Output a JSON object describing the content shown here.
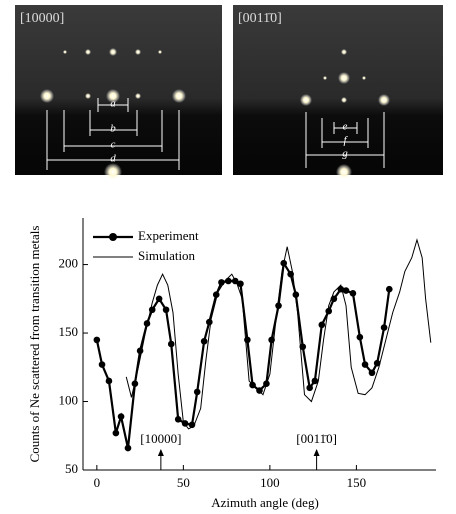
{
  "images": [
    {
      "label": "[10000]",
      "markers": [
        "a",
        "b",
        "c",
        "d"
      ]
    },
    {
      "label": "[0011̄0]",
      "markers": [
        "e",
        "f",
        "g"
      ]
    }
  ],
  "chart_data": {
    "type": "line",
    "xlabel": "Azimuth angle (deg)",
    "ylabel": "Counts of Ne scattered from transition metals",
    "xlim": [
      -8,
      196
    ],
    "ylim": [
      50,
      234
    ],
    "xticks": [
      0,
      50,
      100,
      150
    ],
    "yticks": [
      50,
      100,
      150,
      200
    ],
    "legend": "upper left",
    "annotations": [
      {
        "text": "[10000]",
        "x": 37
      },
      {
        "text": "[0011̄0]",
        "x": 127
      }
    ],
    "series": [
      {
        "name": "Experiment",
        "color": "#000000",
        "marker": "circle",
        "x": [
          0,
          3,
          7,
          11,
          14,
          18,
          22,
          25,
          29,
          32,
          36,
          40,
          43,
          47,
          51,
          55,
          58,
          62,
          65,
          69,
          72,
          76,
          80,
          83,
          87,
          90,
          94,
          98,
          101,
          105,
          108,
          112,
          115,
          119,
          123,
          126,
          130,
          134,
          137,
          141,
          144,
          148,
          152,
          155,
          159,
          162,
          166,
          169
        ],
        "values": [
          145,
          127,
          115,
          77,
          89,
          66,
          113,
          137,
          157,
          167,
          175,
          167,
          142,
          87,
          84,
          83,
          107,
          144,
          158,
          178,
          187,
          188,
          188,
          186,
          145,
          112,
          108,
          113,
          145,
          170,
          201,
          193,
          178,
          140,
          110,
          115,
          156,
          166,
          175,
          182,
          181,
          179,
          147,
          127,
          121,
          128,
          154,
          182
        ]
      },
      {
        "name": "Simulation",
        "color": "#000000",
        "x": [
          17,
          20,
          24,
          28,
          32,
          35,
          38,
          41,
          44,
          47,
          50,
          53,
          56,
          60,
          63,
          66,
          70,
          74,
          78,
          81,
          84,
          88,
          92,
          96,
          100,
          104,
          107,
          110,
          113,
          116,
          120,
          124,
          128,
          131,
          134,
          137,
          141,
          144,
          147,
          151,
          155,
          159,
          163,
          167,
          171,
          175,
          178,
          182,
          185,
          188,
          190,
          193
        ],
        "values": [
          118,
          103,
          125,
          150,
          172,
          185,
          193,
          185,
          165,
          120,
          85,
          80,
          82,
          95,
          130,
          160,
          180,
          188,
          193,
          186,
          175,
          115,
          110,
          105,
          120,
          165,
          195,
          213,
          195,
          165,
          105,
          100,
          115,
          145,
          170,
          180,
          185,
          170,
          125,
          106,
          105,
          110,
          125,
          145,
          165,
          180,
          195,
          205,
          218,
          205,
          175,
          143
        ]
      }
    ]
  }
}
